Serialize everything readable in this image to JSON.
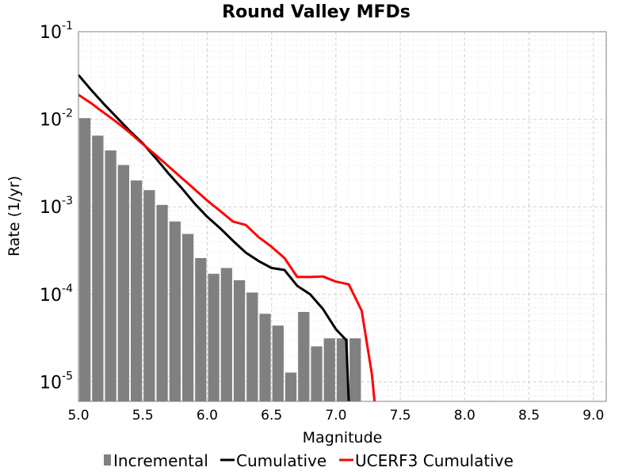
{
  "chart_data": {
    "type": "bar+line",
    "title": "Round Valley MFDs",
    "xlabel": "Magnitude",
    "ylabel": "Rate (1/yr)",
    "xlim": [
      5.0,
      9.1
    ],
    "ylim": [
      6e-06,
      0.1
    ],
    "y_scale": "log",
    "grid": true,
    "legend_position": "bottom",
    "x_ticks": [
      "5.0",
      "5.5",
      "6.0",
      "6.5",
      "7.0",
      "7.5",
      "8.0",
      "8.5",
      "9.0"
    ],
    "y_ticks": [
      {
        "base": "10",
        "exp": "-1"
      },
      {
        "base": "10",
        "exp": "-2"
      },
      {
        "base": "10",
        "exp": "-3"
      },
      {
        "base": "10",
        "exp": "-4"
      },
      {
        "base": "10",
        "exp": "-5"
      }
    ],
    "bar_width": 0.1,
    "series": [
      {
        "name": "Incremental",
        "type": "bar",
        "color": "#808080",
        "x": [
          5.05,
          5.15,
          5.25,
          5.35,
          5.45,
          5.55,
          5.65,
          5.75,
          5.85,
          5.95,
          6.05,
          6.15,
          6.25,
          6.35,
          6.45,
          6.55,
          6.65,
          6.75,
          6.85,
          6.95,
          7.05,
          7.15
        ],
        "values": [
          0.0103,
          0.0065,
          0.0044,
          0.003,
          0.002,
          0.00155,
          0.00105,
          0.00068,
          0.00049,
          0.00026,
          0.000172,
          0.0002,
          0.000145,
          0.000105,
          6e-05,
          4.4e-05,
          1.28e-05,
          6.3e-05,
          2.55e-05,
          3.15e-05,
          3.15e-05,
          3.15e-05
        ]
      },
      {
        "name": "Cumulative",
        "type": "line",
        "color": "#000000",
        "x": [
          5.0,
          5.1,
          5.2,
          5.3,
          5.4,
          5.5,
          5.6,
          5.7,
          5.8,
          5.9,
          6.0,
          6.1,
          6.2,
          6.3,
          6.4,
          6.5,
          6.6,
          6.7,
          6.8,
          6.9,
          7.0,
          7.08,
          7.1
        ],
        "values": [
          0.032,
          0.0215,
          0.0148,
          0.0104,
          0.0073,
          0.0053,
          0.0036,
          0.0024,
          0.00165,
          0.0011,
          0.00077,
          0.00057,
          0.00041,
          0.0003,
          0.00024,
          0.0002,
          0.00019,
          0.000125,
          0.0001,
          6.8e-05,
          4e-05,
          3e-05,
          6e-06
        ]
      },
      {
        "name": "UCERF3 Cumulative",
        "type": "line",
        "color": "#ff0000",
        "x": [
          5.0,
          5.1,
          5.2,
          5.3,
          5.4,
          5.5,
          5.6,
          5.7,
          5.8,
          5.9,
          6.0,
          6.1,
          6.2,
          6.3,
          6.4,
          6.5,
          6.6,
          6.7,
          6.8,
          6.9,
          7.0,
          7.1,
          7.2,
          7.28,
          7.3
        ],
        "values": [
          0.019,
          0.0152,
          0.0118,
          0.0092,
          0.007,
          0.0052,
          0.0039,
          0.0029,
          0.00215,
          0.0016,
          0.00118,
          0.0009,
          0.00068,
          0.00062,
          0.00045,
          0.00035,
          0.00026,
          0.000158,
          0.000158,
          0.00016,
          0.00014,
          0.00013,
          6.5e-05,
          1.2e-05,
          6e-06
        ]
      }
    ]
  }
}
